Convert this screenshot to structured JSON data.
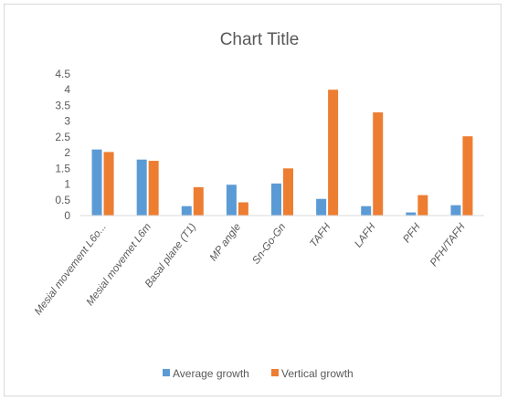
{
  "chart_data": {
    "type": "bar",
    "title": "Chart Title",
    "categories": [
      "Mesial movement  L6o...",
      "Mesial movemet L6m",
      "Basal plane (T1)",
      "MP angle",
      "Sn-Go-Gn",
      "TAFH",
      "LAFH",
      "PFH",
      "PFH/TAFH"
    ],
    "series": [
      {
        "name": "Average growth",
        "values": [
          2.1,
          1.78,
          0.3,
          0.98,
          1.02,
          0.53,
          0.3,
          0.1,
          0.33
        ]
      },
      {
        "name": "Vertical growth",
        "values": [
          2.02,
          1.74,
          0.9,
          0.42,
          1.5,
          4.0,
          3.28,
          0.65,
          2.52
        ]
      }
    ],
    "yticks": [
      "0",
      "0.5",
      "1",
      "1.5",
      "2",
      "2.5",
      "3",
      "3.5",
      "4",
      "4.5"
    ],
    "ylim": [
      0,
      4.5
    ],
    "grid": false,
    "legend_position": "bottom",
    "colors": {
      "Average growth": "#5B9BD5",
      "Vertical growth": "#ED7D31"
    }
  }
}
